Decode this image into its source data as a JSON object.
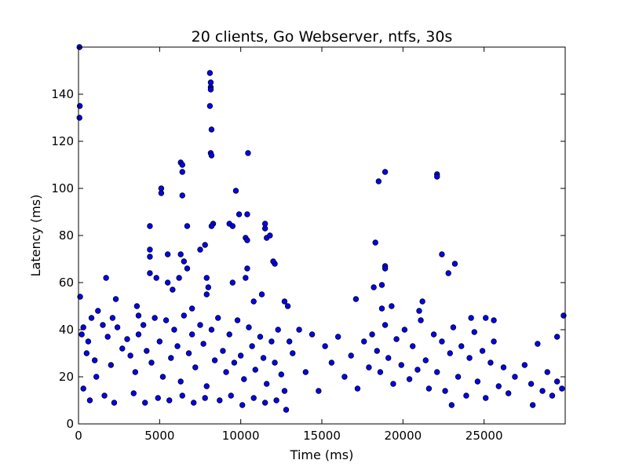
{
  "chart_data": {
    "type": "scatter",
    "title": "20 clients, Go Webserver, ntfs, 30s",
    "xlabel": "Time (ms)",
    "ylabel": "Latency (ms)",
    "xlim": [
      0,
      30000
    ],
    "ylim": [
      0,
      160
    ],
    "xticks": [
      0,
      5000,
      10000,
      15000,
      20000,
      25000
    ],
    "yticks": [
      0,
      20,
      40,
      60,
      80,
      100,
      120,
      140
    ],
    "grid": false,
    "marker_color": "#0000ff",
    "marker_edge_color": "#000000",
    "points": [
      [
        60,
        160
      ],
      [
        80,
        135
      ],
      [
        60,
        130
      ],
      [
        100,
        54
      ],
      [
        1700,
        62
      ],
      [
        2300,
        53
      ],
      [
        8100,
        149
      ],
      [
        8150,
        145
      ],
      [
        8150,
        143
      ],
      [
        8150,
        142
      ],
      [
        8100,
        135
      ],
      [
        8200,
        125
      ],
      [
        8150,
        115
      ],
      [
        8200,
        114
      ],
      [
        10450,
        115
      ],
      [
        6300,
        111
      ],
      [
        6400,
        110
      ],
      [
        6400,
        107
      ],
      [
        5100,
        100
      ],
      [
        5100,
        98
      ],
      [
        6400,
        97
      ],
      [
        9700,
        99
      ],
      [
        9900,
        89
      ],
      [
        10400,
        89
      ],
      [
        9300,
        85
      ],
      [
        9500,
        84
      ],
      [
        11500,
        85
      ],
      [
        11500,
        83
      ],
      [
        4400,
        84
      ],
      [
        6700,
        84
      ],
      [
        8300,
        85
      ],
      [
        8200,
        84
      ],
      [
        10300,
        79
      ],
      [
        10400,
        78
      ],
      [
        11600,
        79
      ],
      [
        11800,
        80
      ],
      [
        4400,
        74
      ],
      [
        4400,
        71
      ],
      [
        5500,
        72
      ],
      [
        6300,
        72
      ],
      [
        6500,
        69
      ],
      [
        7800,
        76
      ],
      [
        7500,
        74
      ],
      [
        6700,
        66
      ],
      [
        4400,
        64
      ],
      [
        4800,
        62
      ],
      [
        6200,
        62
      ],
      [
        7900,
        62
      ],
      [
        8000,
        58
      ],
      [
        7900,
        55
      ],
      [
        9500,
        60
      ],
      [
        10400,
        66
      ],
      [
        10300,
        62
      ],
      [
        12100,
        68
      ],
      [
        12000,
        69
      ],
      [
        3600,
        50
      ],
      [
        3700,
        46
      ],
      [
        5500,
        60
      ],
      [
        5800,
        57
      ],
      [
        7000,
        49
      ],
      [
        10800,
        52
      ],
      [
        11300,
        55
      ],
      [
        12700,
        52
      ],
      [
        12900,
        50
      ],
      [
        18300,
        77
      ],
      [
        18500,
        103
      ],
      [
        18900,
        107
      ],
      [
        18900,
        67
      ],
      [
        18900,
        66
      ],
      [
        22100,
        106
      ],
      [
        22100,
        105
      ],
      [
        22400,
        72
      ],
      [
        22800,
        64
      ],
      [
        23200,
        68
      ],
      [
        17100,
        53
      ],
      [
        18200,
        58
      ],
      [
        18700,
        59
      ],
      [
        18700,
        49
      ],
      [
        19300,
        50
      ],
      [
        21000,
        48
      ],
      [
        21200,
        52
      ],
      [
        24200,
        45
      ],
      [
        25100,
        45
      ],
      [
        25600,
        44
      ],
      [
        29900,
        46
      ],
      [
        29500,
        37
      ],
      [
        28000,
        8
      ],
      [
        23000,
        8
      ],
      [
        200,
        38
      ],
      [
        300,
        41
      ],
      [
        500,
        30
      ],
      [
        600,
        35
      ],
      [
        800,
        45
      ],
      [
        1000,
        27
      ],
      [
        1200,
        48
      ],
      [
        1500,
        42
      ],
      [
        1800,
        37
      ],
      [
        2000,
        25
      ],
      [
        2100,
        45
      ],
      [
        2400,
        41
      ],
      [
        2700,
        32
      ],
      [
        3000,
        36
      ],
      [
        3200,
        29
      ],
      [
        3500,
        22
      ],
      [
        3700,
        38
      ],
      [
        4000,
        42
      ],
      [
        4200,
        31
      ],
      [
        4500,
        26
      ],
      [
        4700,
        45
      ],
      [
        5000,
        35
      ],
      [
        5200,
        20
      ],
      [
        5400,
        44
      ],
      [
        5700,
        28
      ],
      [
        5900,
        40
      ],
      [
        6100,
        33
      ],
      [
        6300,
        18
      ],
      [
        6500,
        46
      ],
      [
        6800,
        30
      ],
      [
        7000,
        38
      ],
      [
        7200,
        24
      ],
      [
        7500,
        42
      ],
      [
        7700,
        34
      ],
      [
        7900,
        16
      ],
      [
        8200,
        40
      ],
      [
        8400,
        27
      ],
      [
        8600,
        45
      ],
      [
        8900,
        31
      ],
      [
        9100,
        22
      ],
      [
        9300,
        38
      ],
      [
        9600,
        26
      ],
      [
        9800,
        44
      ],
      [
        10000,
        29
      ],
      [
        10200,
        19
      ],
      [
        10500,
        41
      ],
      [
        10700,
        33
      ],
      [
        10900,
        23
      ],
      [
        11200,
        37
      ],
      [
        11400,
        28
      ],
      [
        11600,
        17
      ],
      [
        11900,
        35
      ],
      [
        12100,
        26
      ],
      [
        12300,
        40
      ],
      [
        12500,
        21
      ],
      [
        12700,
        14
      ],
      [
        13000,
        35
      ],
      [
        13200,
        30
      ],
      [
        13600,
        40
      ],
      [
        14000,
        22
      ],
      [
        14400,
        38
      ],
      [
        14800,
        14
      ],
      [
        15200,
        33
      ],
      [
        15600,
        26
      ],
      [
        16000,
        37
      ],
      [
        16400,
        20
      ],
      [
        16800,
        29
      ],
      [
        17200,
        15
      ],
      [
        17600,
        35
      ],
      [
        17900,
        24
      ],
      [
        18100,
        38
      ],
      [
        18400,
        31
      ],
      [
        18600,
        22
      ],
      [
        18900,
        42
      ],
      [
        19100,
        28
      ],
      [
        19400,
        17
      ],
      [
        19600,
        36
      ],
      [
        19900,
        25
      ],
      [
        20100,
        40
      ],
      [
        20400,
        19
      ],
      [
        20600,
        33
      ],
      [
        20900,
        23
      ],
      [
        21100,
        44
      ],
      [
        21400,
        27
      ],
      [
        21600,
        15
      ],
      [
        21900,
        38
      ],
      [
        22100,
        22
      ],
      [
        22400,
        35
      ],
      [
        22600,
        14
      ],
      [
        22900,
        30
      ],
      [
        23100,
        41
      ],
      [
        23400,
        20
      ],
      [
        23600,
        33
      ],
      [
        23900,
        12
      ],
      [
        24100,
        28
      ],
      [
        24400,
        39
      ],
      [
        24600,
        18
      ],
      [
        24900,
        31
      ],
      [
        25100,
        11
      ],
      [
        25400,
        26
      ],
      [
        25600,
        35
      ],
      [
        25900,
        16
      ],
      [
        26200,
        24
      ],
      [
        26500,
        13
      ],
      [
        26900,
        20
      ],
      [
        27500,
        25
      ],
      [
        27900,
        17
      ],
      [
        28300,
        34
      ],
      [
        28600,
        14
      ],
      [
        28900,
        22
      ],
      [
        29200,
        12
      ],
      [
        29500,
        18
      ],
      [
        29800,
        15
      ],
      [
        300,
        15
      ],
      [
        700,
        10
      ],
      [
        1100,
        20
      ],
      [
        1600,
        12
      ],
      [
        2200,
        9
      ],
      [
        3400,
        13
      ],
      [
        4100,
        9
      ],
      [
        4900,
        11
      ],
      [
        5600,
        10
      ],
      [
        6400,
        12
      ],
      [
        7100,
        9
      ],
      [
        7800,
        11
      ],
      [
        8700,
        10
      ],
      [
        9400,
        12
      ],
      [
        10100,
        8
      ],
      [
        10800,
        11
      ],
      [
        11500,
        9
      ],
      [
        12200,
        10
      ],
      [
        12800,
        6
      ]
    ]
  }
}
